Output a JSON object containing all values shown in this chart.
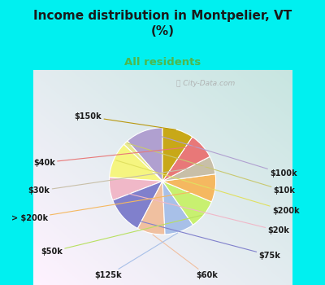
{
  "title": "Income distribution in Montpelier, VT\n(%)",
  "subtitle": "All residents",
  "title_color": "#1a1a1a",
  "subtitle_color": "#4db84d",
  "bg_color": "#00f0f0",
  "chart_bg_color": "#d0f0e0",
  "watermark": "City-Data.com",
  "labels": [
    "$100k",
    "$10k",
    "$200k",
    "$20k",
    "$75k",
    "$60k",
    "$125k",
    "$50k",
    "> $200k",
    "$30k",
    "$40k",
    "$150k"
  ],
  "values": [
    11.5,
    1.5,
    11.0,
    7.0,
    11.5,
    8.5,
    9.0,
    9.0,
    8.5,
    5.5,
    8.0,
    9.5
  ],
  "colors": [
    "#b0a0d0",
    "#e8e890",
    "#f5f580",
    "#f0b8c8",
    "#8080cc",
    "#f0c0a0",
    "#a8c0e8",
    "#c8f070",
    "#f5b860",
    "#c8bfa8",
    "#e87878",
    "#c8a818"
  ],
  "line_colors": [
    "#b0a0d0",
    "#c8c870",
    "#e0e060",
    "#f0b8c8",
    "#8080cc",
    "#f0c0a0",
    "#a8c0e8",
    "#b8e060",
    "#f5b860",
    "#c8bfa8",
    "#e87878",
    "#b89810"
  ],
  "startangle": 90,
  "figsize": [
    4.0,
    3.5
  ],
  "dpi": 100
}
